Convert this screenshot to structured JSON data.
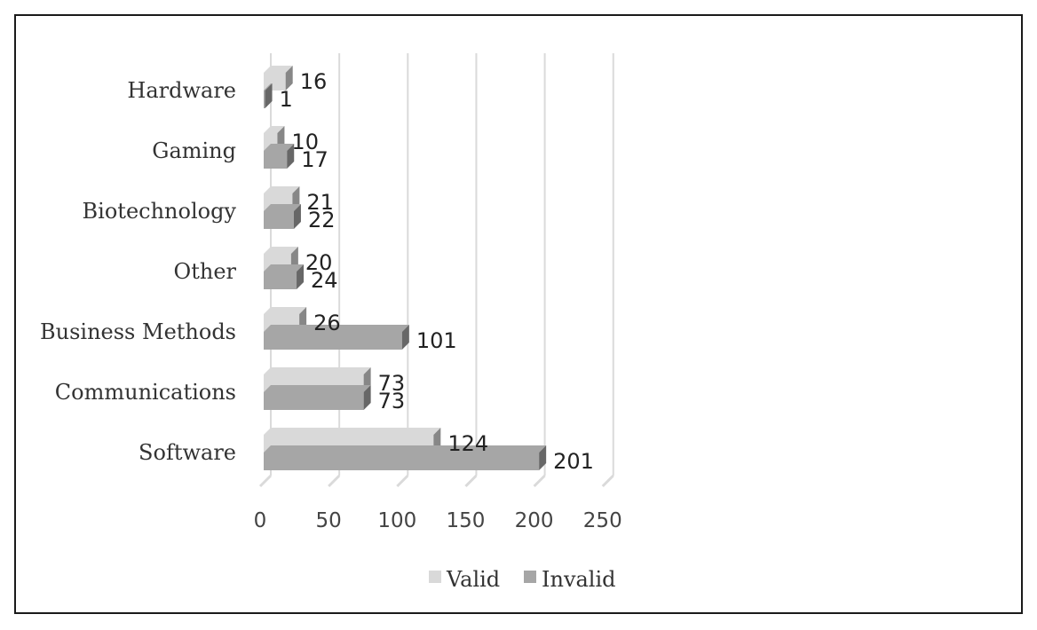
{
  "chart_data": {
    "type": "bar",
    "orientation": "horizontal",
    "style": "3d-clustered",
    "categories": [
      "Software",
      "Communications",
      "Business Methods",
      "Other",
      "Biotechnology",
      "Gaming",
      "Hardware"
    ],
    "series": [
      {
        "name": "Valid",
        "values": [
          124,
          73,
          26,
          20,
          21,
          10,
          16
        ],
        "color": "#d9d9d9"
      },
      {
        "name": "Invalid",
        "values": [
          201,
          73,
          101,
          24,
          22,
          17,
          1
        ],
        "color": "#a6a6a6"
      }
    ],
    "value_labels": {
      "Valid": [
        "124",
        "73",
        "26",
        "20",
        "21",
        "10",
        "16"
      ],
      "Invalid": [
        "201",
        "73",
        "101",
        "24",
        "22",
        "17",
        "1"
      ]
    },
    "xticks": [
      0,
      50,
      100,
      150,
      200,
      250
    ],
    "xtick_labels": [
      "0",
      "50",
      "100",
      "150",
      "200",
      "250"
    ],
    "xlim": [
      0,
      250
    ],
    "title": "",
    "xlabel": "",
    "ylabel": "",
    "grid": "vertical",
    "legend": {
      "position": "bottom",
      "entries": [
        "Valid",
        "Invalid"
      ]
    }
  }
}
